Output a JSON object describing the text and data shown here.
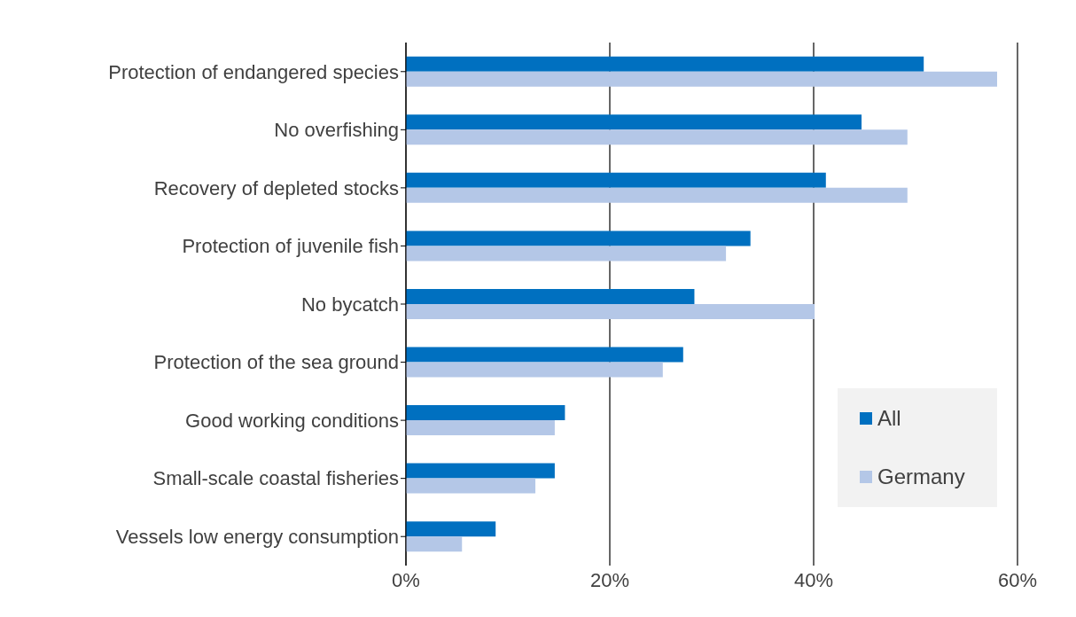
{
  "chart_data": {
    "type": "bar",
    "orientation": "horizontal",
    "categories": [
      "Protection of endangered species",
      "No overfishing",
      "Recovery of depleted stocks",
      "Protection of juvenile fish",
      "No bycatch",
      "Protection of the sea ground",
      "Good working conditions",
      "Small-scale coastal fisheries",
      "Vessels low energy consumption"
    ],
    "series": [
      {
        "name": "All",
        "color": "#0070c0",
        "values": [
          50.8,
          44.7,
          41.2,
          33.8,
          28.3,
          27.2,
          15.6,
          14.6,
          8.8
        ]
      },
      {
        "name": "Germany",
        "color": "#b4c7e7",
        "values": [
          58,
          49.2,
          49.2,
          31.4,
          40.1,
          25.2,
          14.6,
          12.7,
          5.5
        ]
      }
    ],
    "xlim": [
      0,
      60
    ],
    "xticks": [
      {
        "value": 0,
        "label": "0%"
      },
      {
        "value": 20,
        "label": "20%"
      },
      {
        "value": 40,
        "label": "40%"
      },
      {
        "value": 60,
        "label": "60%"
      }
    ],
    "grid": "x",
    "legend": "bottom right"
  }
}
